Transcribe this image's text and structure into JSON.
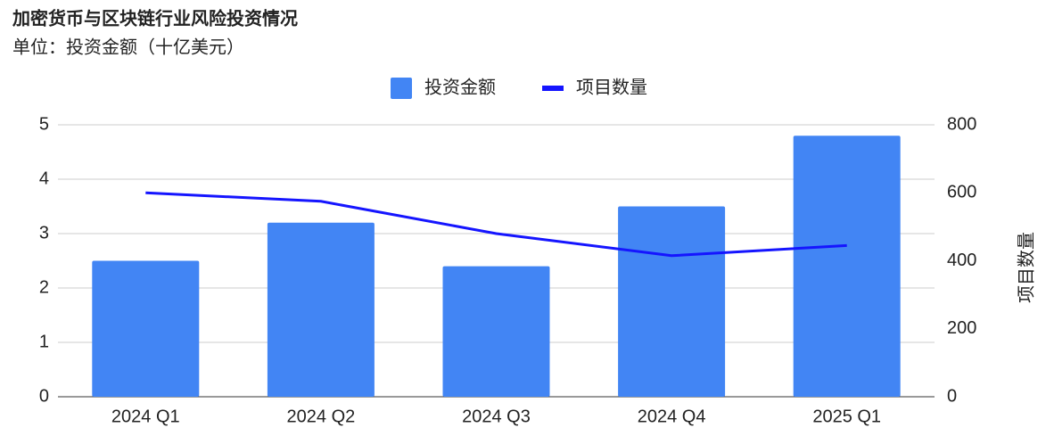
{
  "chart_data": {
    "type": "bar",
    "title": "加密货币与区块链行业风险投资情况",
    "subtitle": "单位：投资金额（十亿美元）",
    "categories": [
      "2024 Q1",
      "2024 Q2",
      "2024 Q3",
      "2024 Q4",
      "2025 Q1"
    ],
    "series": [
      {
        "name": "投资金额",
        "color": "#4285f4",
        "type": "bar",
        "values": [
          2.5,
          3.2,
          2.4,
          3.5,
          4.8
        ]
      },
      {
        "name": "项目数量",
        "color": "#1515ff",
        "type": "line",
        "axis": "y2",
        "values": [
          600,
          575,
          480,
          415,
          445
        ]
      }
    ],
    "ylim": [
      0,
      5
    ],
    "yticks": [
      0,
      1,
      2,
      3,
      4,
      5
    ],
    "y2lim": [
      0,
      800
    ],
    "y2ticks": [
      0,
      200,
      400,
      600,
      800
    ],
    "y2label": "项目数量",
    "grid": true,
    "legend": "top"
  }
}
